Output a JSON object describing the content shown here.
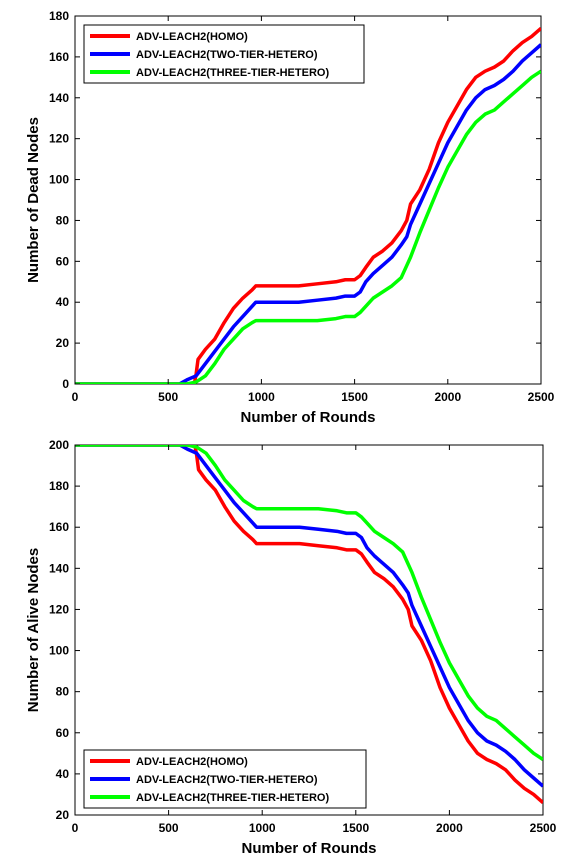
{
  "chart_data": [
    {
      "type": "line",
      "xlabel": "Number of Rounds",
      "ylabel": "Number of Dead Nodes",
      "xlim": [
        0,
        2500
      ],
      "ylim": [
        0,
        180
      ],
      "xticks": [
        0,
        500,
        1000,
        1500,
        2000,
        2500
      ],
      "yticks": [
        0,
        20,
        40,
        60,
        80,
        100,
        120,
        140,
        160,
        180
      ],
      "grid": false,
      "legend_position": "top-left",
      "series": [
        {
          "name": "ADV-LEACH2(HOMO)",
          "color": "#ff0000",
          "x": [
            0,
            640,
            650,
            660,
            700,
            750,
            800,
            850,
            900,
            950,
            970,
            1000,
            1100,
            1200,
            1300,
            1400,
            1450,
            1500,
            1530,
            1560,
            1600,
            1650,
            1700,
            1750,
            1780,
            1800,
            1850,
            1900,
            1950,
            2000,
            2050,
            2100,
            2150,
            2200,
            2250,
            2300,
            2350,
            2400,
            2450,
            2500
          ],
          "y": [
            0,
            0,
            5,
            12,
            17,
            22,
            30,
            37,
            42,
            46,
            48,
            48,
            48,
            48,
            49,
            50,
            51,
            51,
            53,
            57,
            62,
            65,
            69,
            75,
            80,
            88,
            95,
            105,
            118,
            128,
            136,
            144,
            150,
            153,
            155,
            158,
            163,
            167,
            170,
            174
          ]
        },
        {
          "name": "ADV-LEACH2(TWO-TIER-HETERO)",
          "color": "#0000ff",
          "x": [
            0,
            560,
            600,
            650,
            700,
            750,
            800,
            850,
            900,
            950,
            970,
            1000,
            1100,
            1200,
            1300,
            1400,
            1450,
            1500,
            1530,
            1560,
            1600,
            1650,
            1700,
            1750,
            1780,
            1800,
            1850,
            1900,
            1950,
            2000,
            2050,
            2100,
            2150,
            2200,
            2250,
            2300,
            2350,
            2400,
            2450,
            2500
          ],
          "y": [
            0,
            0,
            2,
            4,
            10,
            16,
            22,
            28,
            33,
            38,
            40,
            40,
            40,
            40,
            41,
            42,
            43,
            43,
            45,
            50,
            54,
            58,
            62,
            68,
            72,
            78,
            88,
            98,
            108,
            118,
            126,
            134,
            140,
            144,
            146,
            149,
            153,
            158,
            162,
            166
          ]
        },
        {
          "name": "ADV-LEACH2(THREE-TIER-HETERO)",
          "color": "#00ff00",
          "x": [
            0,
            600,
            650,
            700,
            750,
            800,
            850,
            900,
            950,
            970,
            1000,
            1100,
            1200,
            1300,
            1400,
            1450,
            1500,
            1530,
            1560,
            1600,
            1650,
            1700,
            1750,
            1780,
            1800,
            1850,
            1900,
            1950,
            2000,
            2050,
            2100,
            2150,
            2200,
            2250,
            2300,
            2350,
            2400,
            2450,
            2500
          ],
          "y": [
            0,
            0,
            1,
            4,
            10,
            17,
            22,
            27,
            30,
            31,
            31,
            31,
            31,
            31,
            32,
            33,
            33,
            35,
            38,
            42,
            45,
            48,
            52,
            58,
            62,
            74,
            85,
            96,
            106,
            114,
            122,
            128,
            132,
            134,
            138,
            142,
            146,
            150,
            153
          ]
        }
      ]
    },
    {
      "type": "line",
      "xlabel": "Number of Rounds",
      "ylabel": "Number of Alive Nodes",
      "xlim": [
        0,
        2500
      ],
      "ylim": [
        20,
        200
      ],
      "xticks": [
        0,
        500,
        1000,
        1500,
        2000,
        2500
      ],
      "yticks": [
        20,
        40,
        60,
        80,
        100,
        120,
        140,
        160,
        180,
        200
      ],
      "grid": false,
      "legend_position": "bottom-left",
      "series": [
        {
          "name": "ADV-LEACH2(HOMO)",
          "color": "#ff0000",
          "x": [
            0,
            640,
            650,
            660,
            700,
            750,
            800,
            850,
            900,
            950,
            970,
            1000,
            1100,
            1200,
            1300,
            1400,
            1450,
            1500,
            1530,
            1560,
            1600,
            1650,
            1700,
            1750,
            1780,
            1800,
            1850,
            1900,
            1950,
            2000,
            2050,
            2100,
            2150,
            2200,
            2250,
            2300,
            2350,
            2400,
            2450,
            2500
          ],
          "y": [
            200,
            200,
            195,
            188,
            183,
            178,
            170,
            163,
            158,
            154,
            152,
            152,
            152,
            152,
            151,
            150,
            149,
            149,
            147,
            143,
            138,
            135,
            131,
            125,
            120,
            112,
            105,
            95,
            82,
            72,
            64,
            56,
            50,
            47,
            45,
            42,
            37,
            33,
            30,
            26
          ]
        },
        {
          "name": "ADV-LEACH2(TWO-TIER-HETERO)",
          "color": "#0000ff",
          "x": [
            0,
            560,
            600,
            650,
            700,
            750,
            800,
            850,
            900,
            950,
            970,
            1000,
            1100,
            1200,
            1300,
            1400,
            1450,
            1500,
            1530,
            1560,
            1600,
            1650,
            1700,
            1750,
            1780,
            1800,
            1850,
            1900,
            1950,
            2000,
            2050,
            2100,
            2150,
            2200,
            2250,
            2300,
            2350,
            2400,
            2450,
            2500
          ],
          "y": [
            200,
            200,
            198,
            196,
            190,
            184,
            178,
            172,
            167,
            162,
            160,
            160,
            160,
            160,
            159,
            158,
            157,
            157,
            155,
            150,
            146,
            142,
            138,
            132,
            128,
            122,
            112,
            102,
            92,
            82,
            74,
            66,
            60,
            56,
            54,
            51,
            47,
            42,
            38,
            34
          ]
        },
        {
          "name": "ADV-LEACH2(THREE-TIER-HETERO)",
          "color": "#00ff00",
          "x": [
            0,
            600,
            650,
            700,
            750,
            800,
            850,
            900,
            950,
            970,
            1000,
            1100,
            1200,
            1300,
            1400,
            1450,
            1500,
            1530,
            1560,
            1600,
            1650,
            1700,
            1750,
            1780,
            1800,
            1850,
            1900,
            1950,
            2000,
            2050,
            2100,
            2150,
            2200,
            2250,
            2300,
            2350,
            2400,
            2450,
            2500
          ],
          "y": [
            200,
            200,
            199,
            196,
            190,
            183,
            178,
            173,
            170,
            169,
            169,
            169,
            169,
            169,
            168,
            167,
            167,
            165,
            162,
            158,
            155,
            152,
            148,
            142,
            138,
            126,
            115,
            104,
            94,
            86,
            78,
            72,
            68,
            66,
            62,
            58,
            54,
            50,
            47
          ]
        }
      ]
    }
  ]
}
